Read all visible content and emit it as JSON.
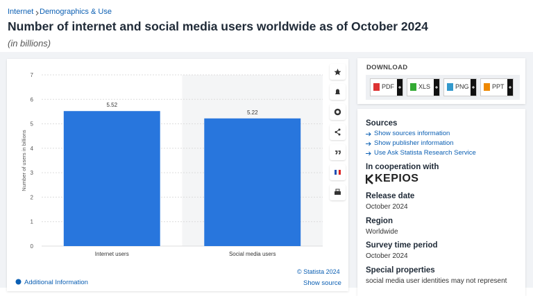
{
  "breadcrumb": [
    "Internet",
    "Demographics & Use"
  ],
  "title": "Number of internet and social media users worldwide as of October 2024",
  "subtitle": "(in billions)",
  "chart_data": {
    "type": "bar",
    "categories": [
      "Internet users",
      "Social media users"
    ],
    "values": [
      5.52,
      5.22
    ],
    "color": "#2876dd",
    "y_label": "Number of users in billions",
    "ylim": [
      0,
      7
    ],
    "yticks": [
      0,
      1,
      2,
      3,
      4,
      5,
      6,
      7
    ],
    "grid": true
  },
  "copyright": "© Statista 2024",
  "footer": {
    "additional_info": "Additional Information",
    "show_source": "Show source"
  },
  "download": {
    "title": "DOWNLOAD",
    "formats": [
      "PDF",
      "XLS",
      "PNG",
      "PPT"
    ]
  },
  "sources": {
    "title": "Sources",
    "links": [
      "Show sources information",
      "Show publisher information",
      "Use Ask Statista Research Service"
    ]
  },
  "cooperation": {
    "title": "In cooperation with",
    "partner": "KEPIOS"
  },
  "details": [
    {
      "label": "Release date",
      "value": "October 2024"
    },
    {
      "label": "Region",
      "value": "Worldwide"
    },
    {
      "label": "Survey time period",
      "value": "October 2024"
    },
    {
      "label": "Special properties",
      "value": "social media user identities may not represent"
    }
  ]
}
